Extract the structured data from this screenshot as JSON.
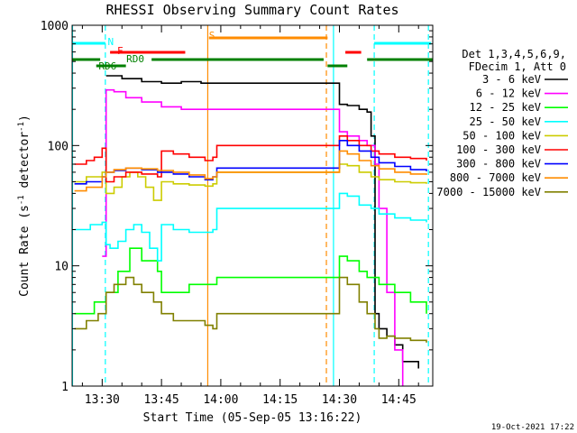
{
  "chart_data": {
    "type": "line",
    "title": "RHESSI Observing Summary Count Rates",
    "xlabel": "Start Time (05-Sep-05 13:16:22)",
    "ylabel_main": "Count Rate (s",
    "ylabel_sup": "-1",
    "ylabel_mid": " detector",
    "ylabel_end": ")",
    "x_unit": "minutes since 13:00 UT",
    "xlim": [
      22.4,
      113.6
    ],
    "ylim": [
      1,
      1000
    ],
    "yscale": "log",
    "x_ticks": [
      {
        "x": 30,
        "label": "13:30"
      },
      {
        "x": 45,
        "label": "13:45"
      },
      {
        "x": 60,
        "label": "14:00"
      },
      {
        "x": 75,
        "label": "14:15"
      },
      {
        "x": 90,
        "label": "14:30"
      },
      {
        "x": 105,
        "label": "14:45"
      }
    ],
    "y_ticks": [
      {
        "y": 1,
        "label": "1"
      },
      {
        "y": 10,
        "label": "10"
      },
      {
        "y": 100,
        "label": "100"
      },
      {
        "y": 1000,
        "label": "1000"
      }
    ],
    "legend": {
      "position": "right",
      "header1": "Det 1,3,4,5,6,9,",
      "header2": "FDecim 1, Att 0"
    },
    "series": [
      {
        "name": "3 - 6 keV",
        "color": "#000000",
        "x": [
          31,
          35,
          40,
          45,
          50,
          55,
          59,
          90,
          92,
          95,
          97,
          98,
          99,
          100,
          102,
          104,
          106,
          110
        ],
        "y": [
          380,
          360,
          340,
          330,
          340,
          330,
          330,
          220,
          215,
          200,
          190,
          120,
          4,
          3,
          2.6,
          2.2,
          1.6,
          1.4
        ]
      },
      {
        "name": "6 - 12 keV",
        "color": "#ff00ff",
        "x": [
          30,
          31,
          33,
          36,
          40,
          45,
          50,
          55,
          59,
          90,
          92,
          95,
          97,
          99,
          100,
          102,
          104,
          106
        ],
        "y": [
          12,
          290,
          280,
          250,
          230,
          210,
          200,
          200,
          200,
          130,
          120,
          110,
          100,
          70,
          30,
          6,
          2,
          1
        ]
      },
      {
        "name": "12 - 25 keV",
        "color": "#00ff00",
        "x": [
          23,
          28,
          31,
          34,
          37,
          40,
          44,
          45,
          48,
          52,
          55,
          58,
          59,
          90,
          92,
          95,
          97,
          100,
          104,
          108,
          112
        ],
        "y": [
          4,
          5,
          6,
          9,
          14,
          11,
          9,
          6,
          6,
          7,
          7,
          7,
          8,
          12,
          11,
          9,
          8,
          7,
          6,
          5,
          4
        ]
      },
      {
        "name": "25 - 50 keV",
        "color": "#00ffff",
        "x": [
          23,
          27,
          30,
          31,
          32,
          34,
          36,
          38,
          40,
          42,
          44,
          45,
          48,
          52,
          56,
          58,
          59,
          90,
          92,
          95,
          98,
          100,
          104,
          108,
          112
        ],
        "y": [
          20,
          22,
          23,
          15,
          14,
          16,
          20,
          22,
          19,
          14,
          11,
          22,
          20,
          19,
          19,
          20,
          30,
          40,
          38,
          32,
          30,
          27,
          25,
          24,
          23
        ]
      },
      {
        "name": "50 - 100 keV",
        "color": "#cccc00",
        "x": [
          23,
          26,
          30,
          31,
          33,
          35,
          37,
          39,
          41,
          43,
          45,
          48,
          52,
          56,
          58,
          59,
          90,
          92,
          95,
          98,
          100,
          104,
          108,
          112
        ],
        "y": [
          50,
          55,
          60,
          40,
          45,
          55,
          60,
          55,
          45,
          35,
          50,
          48,
          47,
          46,
          48,
          60,
          70,
          68,
          60,
          55,
          52,
          50,
          49,
          48
        ]
      },
      {
        "name": "100 - 300 keV",
        "color": "#ff0000",
        "x": [
          23,
          26,
          28,
          30,
          31,
          33,
          36,
          40,
          44,
          45,
          48,
          52,
          56,
          58,
          59,
          90,
          92,
          95,
          98,
          100,
          104,
          108,
          112
        ],
        "y": [
          70,
          75,
          80,
          95,
          50,
          55,
          60,
          58,
          55,
          90,
          85,
          80,
          75,
          80,
          100,
          120,
          110,
          100,
          90,
          85,
          80,
          78,
          75
        ]
      },
      {
        "name": "300 - 800 keV",
        "color": "#0000ff",
        "x": [
          23,
          26,
          30,
          31,
          33,
          36,
          40,
          44,
          45,
          48,
          52,
          56,
          58,
          59,
          90,
          92,
          95,
          98,
          100,
          104,
          108,
          112
        ],
        "y": [
          48,
          50,
          55,
          60,
          62,
          65,
          63,
          60,
          60,
          58,
          55,
          52,
          55,
          65,
          110,
          100,
          90,
          80,
          72,
          67,
          63,
          61
        ]
      },
      {
        "name": "800 - 7000 keV",
        "color": "#ff8c00",
        "x": [
          23,
          26,
          30,
          31,
          33,
          36,
          40,
          44,
          45,
          48,
          52,
          56,
          58,
          59,
          90,
          92,
          95,
          98,
          100,
          104,
          108,
          112
        ],
        "y": [
          42,
          45,
          55,
          60,
          63,
          65,
          64,
          62,
          62,
          60,
          57,
          53,
          55,
          60,
          90,
          85,
          75,
          68,
          64,
          60,
          58,
          57
        ]
      },
      {
        "name": "7000 - 15000 keV",
        "color": "#808000",
        "x": [
          23,
          26,
          29,
          31,
          33,
          36,
          38,
          40,
          43,
          45,
          48,
          52,
          56,
          58,
          59,
          90,
          92,
          95,
          97,
          99,
          100,
          102,
          104,
          108,
          112
        ],
        "y": [
          3,
          3.5,
          4,
          6,
          7,
          8,
          7,
          6,
          5,
          4,
          3.5,
          3.5,
          3.2,
          3,
          4,
          8,
          7,
          5,
          4,
          3,
          2.5,
          2.6,
          2.5,
          2.4,
          2.3
        ]
      }
    ],
    "flags": [
      {
        "label": "N",
        "color": "#00ffff",
        "segments": [
          [
            22.4,
            30.8
          ],
          [
            98.8,
            113.2
          ]
        ]
      },
      {
        "label": "F",
        "color": "#ff0000",
        "segments": [
          [
            32,
            51
          ]
        ]
      },
      {
        "label": "S",
        "color": "#ff8c00",
        "segments": [
          [
            57,
            87
          ]
        ]
      },
      {
        "label": "RD0",
        "color": "#008000",
        "segments": [
          [
            22.4,
            29.5
          ],
          [
            42.5,
            86
          ],
          [
            97,
            113.6
          ]
        ]
      },
      {
        "label": "RD6",
        "color": "#008000",
        "segments": [
          [
            28.5,
            36
          ],
          [
            87,
            92
          ]
        ]
      },
      {
        "label": "",
        "color": "#ff0000",
        "segments": [
          [
            91.5,
            95.5
          ]
        ]
      }
    ],
    "vertical_markers": [
      {
        "x": 22.5,
        "color": "#00ffff",
        "style": "solid"
      },
      {
        "x": 30.8,
        "color": "#00ffff",
        "style": "dashed"
      },
      {
        "x": 56.7,
        "color": "#ff8c00",
        "style": "solid"
      },
      {
        "x": 86.7,
        "color": "#ff8c00",
        "style": "dashed"
      },
      {
        "x": 88.5,
        "color": "#00ffff",
        "style": "solid"
      },
      {
        "x": 98.8,
        "color": "#00ffff",
        "style": "dashed"
      },
      {
        "x": 112.5,
        "color": "#00ffff",
        "style": "dashed"
      }
    ]
  },
  "footer": {
    "timestamp": "19-Oct-2021 17:22"
  }
}
